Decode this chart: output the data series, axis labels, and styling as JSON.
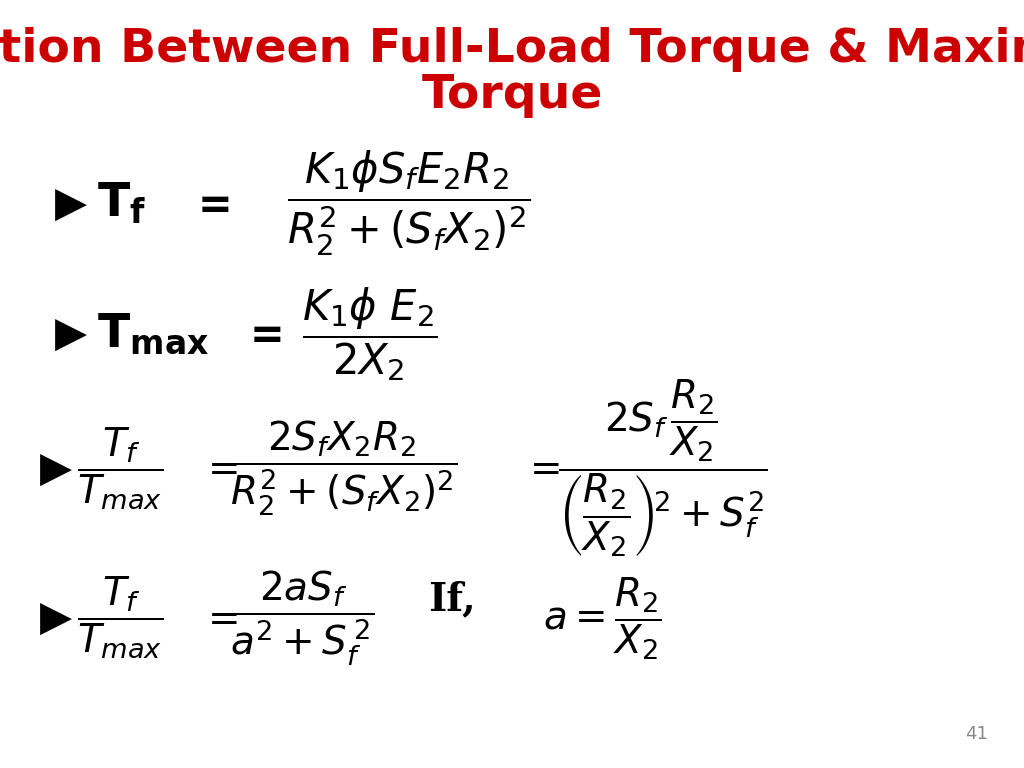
{
  "title_line1": "Relation Between Full-Load Torque & Maximum",
  "title_line2": "Torque",
  "title_color": "#cc0000",
  "title_fontsize": 34,
  "bg_color": "#ffffff",
  "text_color": "#000000",
  "page_number": "41",
  "page_num_color": "#888888",
  "page_num_fontsize": 13
}
